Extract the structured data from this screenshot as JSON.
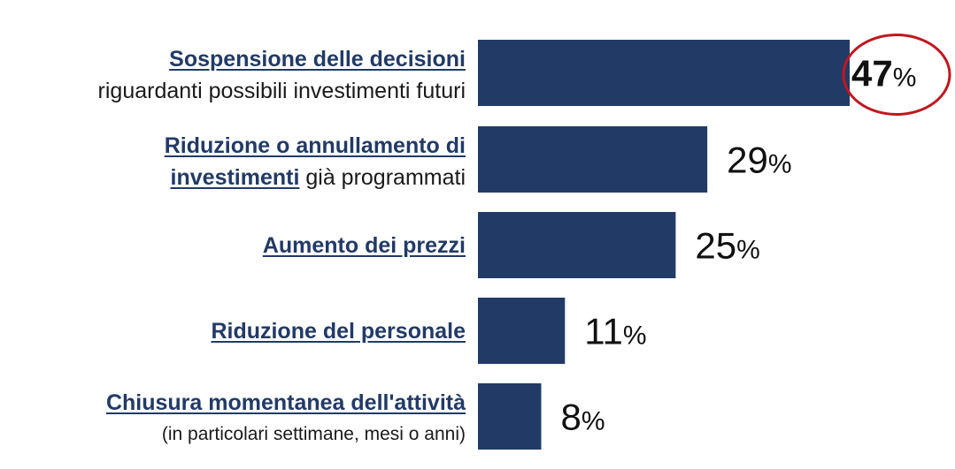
{
  "chart_data": {
    "type": "bar",
    "orientation": "horizontal",
    "categories": [
      {
        "parts": [
          {
            "line": 0,
            "text": "Sospensione delle decisioni",
            "style": "bold"
          },
          {
            "line": 1,
            "text": "riguardanti possibili investimenti futuri",
            "style": "rest"
          }
        ]
      },
      {
        "parts": [
          {
            "line": 0,
            "text": "Riduzione o annullamento di",
            "style": "bold"
          },
          {
            "line": 1,
            "text": "investimenti",
            "style": "bold"
          },
          {
            "line": 1,
            "text": " già programmati",
            "style": "rest"
          }
        ]
      },
      {
        "parts": [
          {
            "line": 0,
            "text": "Aumento dei prezzi",
            "style": "bold"
          }
        ]
      },
      {
        "parts": [
          {
            "line": 0,
            "text": "Riduzione del personale",
            "style": "bold"
          }
        ]
      },
      {
        "parts": [
          {
            "line": 0,
            "text": "Chiusura momentanea dell'attività",
            "style": "bold"
          },
          {
            "line": 1,
            "text": "(in particolari settimane, mesi o anni)",
            "style": "small"
          }
        ]
      }
    ],
    "values": [
      47,
      29,
      25,
      11,
      8
    ],
    "value_labels": [
      "47",
      "29",
      "25",
      "11",
      "8"
    ],
    "value_unit": "%",
    "highlight_index": 0,
    "xlim": [
      0,
      47
    ],
    "grid": false,
    "colors": {
      "bar": "#223a66",
      "highlight_ring": "#c0171f",
      "label_text": "#1a1a1a"
    }
  }
}
